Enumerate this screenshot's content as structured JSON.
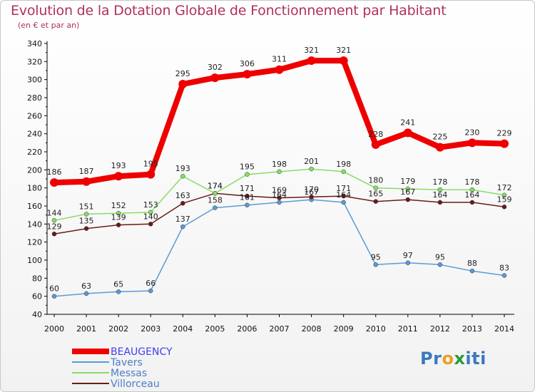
{
  "chart_data": {
    "type": "line",
    "title": "Evolution de la Dotation Globale de Fonctionnement par Habitant",
    "subtitle": "(en € et par an)",
    "x": [
      "2000",
      "2001",
      "2002",
      "2003",
      "2004",
      "2005",
      "2006",
      "2007",
      "2008",
      "2009",
      "2010",
      "2011",
      "2012",
      "2013",
      "2014"
    ],
    "ylim": [
      40,
      340
    ],
    "yticks": [
      40,
      60,
      80,
      100,
      120,
      140,
      160,
      180,
      200,
      220,
      240,
      260,
      280,
      300,
      320,
      340
    ],
    "grid": false,
    "legend_position": "bottom-left",
    "series": [
      {
        "name": "BEAUGENCY",
        "color": "#ee0000",
        "values": [
          186,
          187,
          193,
          195,
          295,
          302,
          306,
          311,
          321,
          321,
          228,
          241,
          225,
          230,
          229
        ]
      },
      {
        "name": "Tavers",
        "color": "#5b9bd5",
        "values": [
          60,
          63,
          65,
          66,
          137,
          158,
          161,
          164,
          167,
          164,
          95,
          97,
          95,
          88,
          83
        ]
      },
      {
        "name": "Messas",
        "color": "#88dd66",
        "values": [
          144,
          151,
          152,
          153,
          193,
          174,
          195,
          198,
          201,
          198,
          180,
          179,
          178,
          178,
          172
        ]
      },
      {
        "name": "Villorceau",
        "color": "#6b1a1a",
        "values": [
          129,
          135,
          139,
          140,
          163,
          174,
          171,
          169,
          170,
          171,
          165,
          167,
          164,
          164,
          159
        ]
      }
    ]
  },
  "logo": {
    "parts": [
      "Pr",
      "o",
      "x",
      "iti"
    ],
    "colors": [
      "#3a78c2",
      "#e8a020",
      "#2a9a3a",
      "#3a78c2"
    ]
  }
}
